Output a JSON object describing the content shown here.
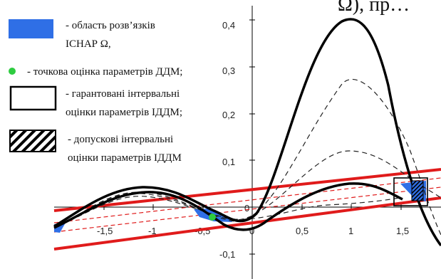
{
  "header": {
    "visible_fragment": "Ω), пр…"
  },
  "legend": {
    "items": [
      {
        "id": "solution-region",
        "line1": "- область розв’язків",
        "line2": "ІСНАР  Ω,",
        "swatch": "blue-fill"
      },
      {
        "id": "point-estimate",
        "line1": "- точкова оцінка параметрів ДДМ;",
        "swatch": "green-dot"
      },
      {
        "id": "guaranteed-interval",
        "line1": "- гарантовані інтервальні",
        "line2": "оцінки параметрів ІДДМ;",
        "swatch": "white-box"
      },
      {
        "id": "tolerance-interval",
        "line1": "- допускові інтервальні",
        "line2": "оцінки параметрів ІДДМ",
        "swatch": "hatched-box"
      }
    ]
  },
  "axes": {
    "x_ticks": [
      "-1,5",
      "-1",
      "-0,5",
      "0",
      "0,5",
      "1",
      "1,5"
    ],
    "y_ticks": [
      "0,4",
      "0,3",
      "0,2",
      "0,1",
      "0",
      "-0,1"
    ]
  },
  "colors": {
    "blue": "#2f6fe6",
    "green": "#2ecc40",
    "red": "#e01b1b",
    "black": "#000000",
    "background": "#ffffff"
  }
}
